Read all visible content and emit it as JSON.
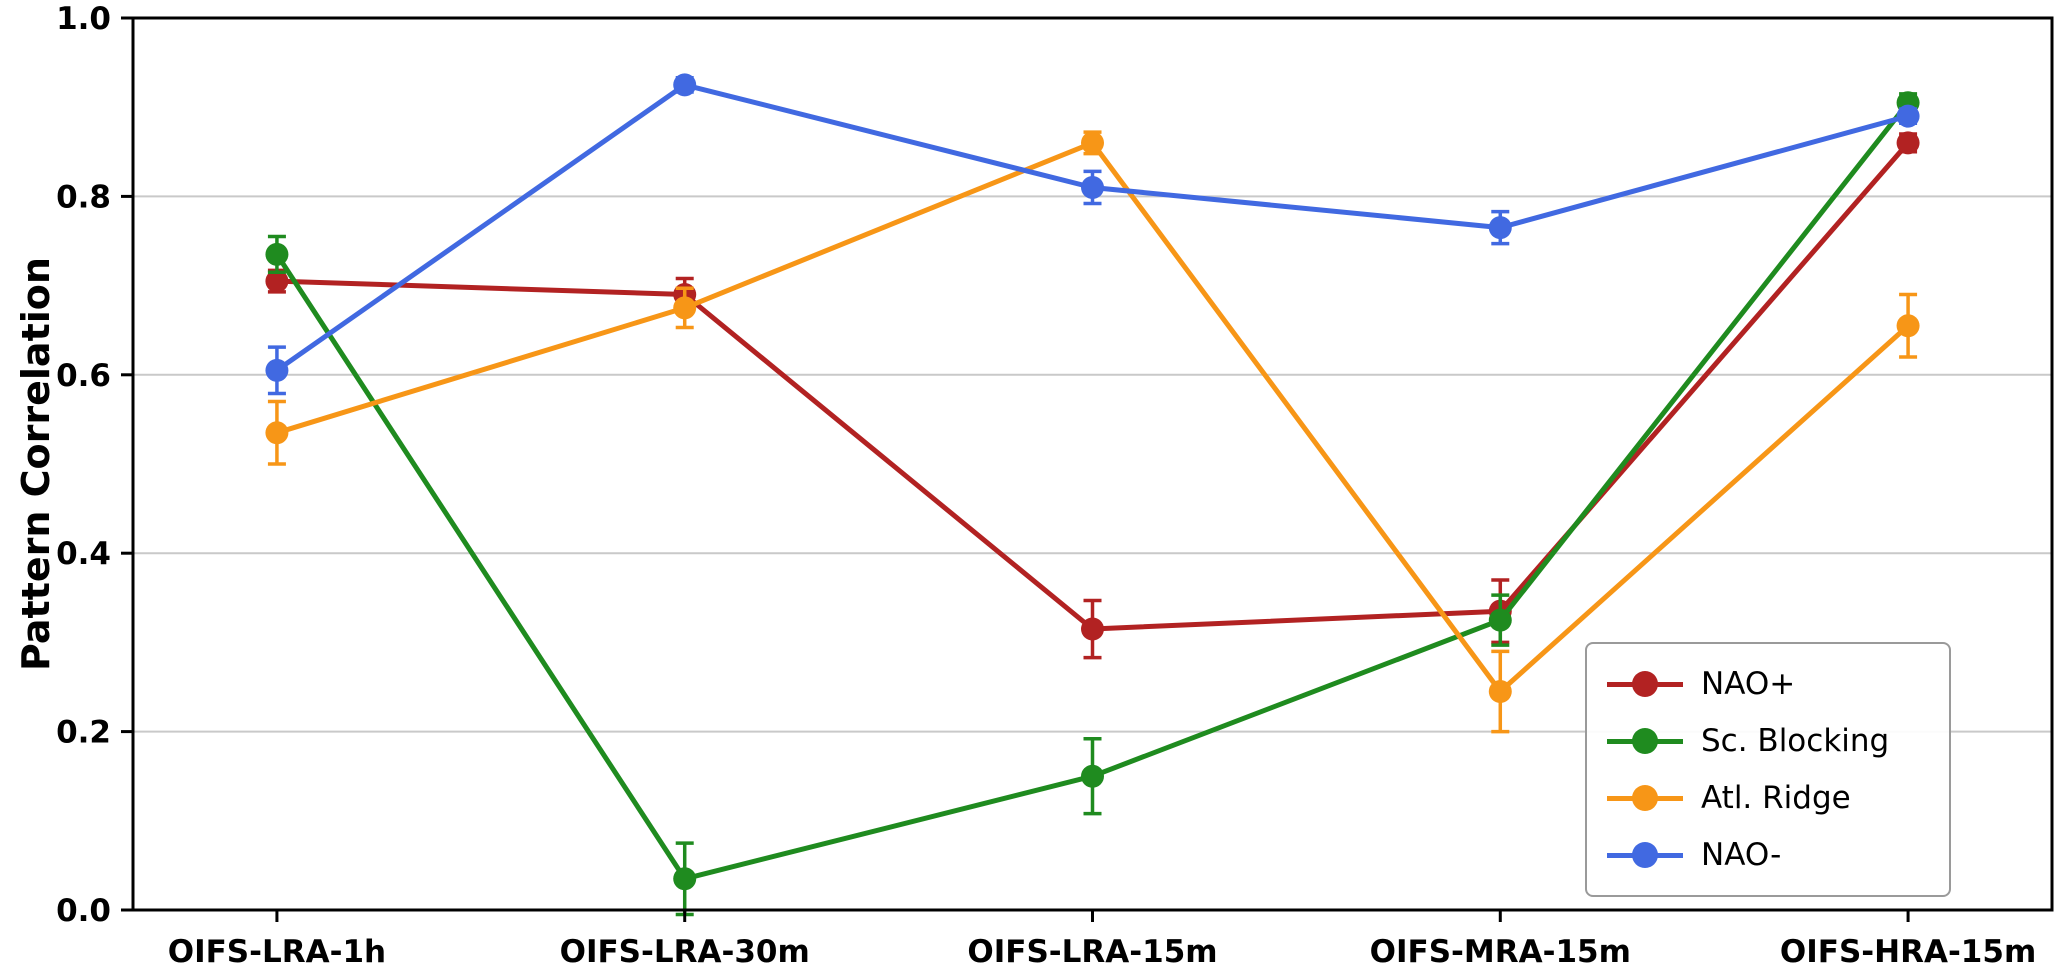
{
  "chart_data": {
    "type": "line",
    "title": "",
    "xlabel": "",
    "ylabel": "Pattern Correlation",
    "ylim": [
      0.0,
      1.0
    ],
    "yticks": [
      0.0,
      0.2,
      0.4,
      0.6,
      0.8,
      1.0
    ],
    "grid": "horizontal",
    "legend_position": "lower right",
    "categories": [
      "OIFS-LRA-1h",
      "OIFS-LRA-30m",
      "OIFS-LRA-15m",
      "OIFS-MRA-15m",
      "OIFS-HRA-15m"
    ],
    "series": [
      {
        "name": "NAO+",
        "color": "#B22222",
        "values": [
          0.705,
          0.69,
          0.315,
          0.335,
          0.86
        ],
        "errors": [
          0.012,
          0.018,
          0.032,
          0.035,
          0.01
        ]
      },
      {
        "name": "Sc. Blocking",
        "color": "#1F8B1F",
        "values": [
          0.735,
          0.035,
          0.15,
          0.325,
          0.905
        ],
        "errors": [
          0.02,
          0.04,
          0.042,
          0.028,
          0.01
        ]
      },
      {
        "name": "Atl. Ridge",
        "color": "#F79617",
        "values": [
          0.535,
          0.675,
          0.86,
          0.245,
          0.655
        ],
        "errors": [
          0.035,
          0.022,
          0.012,
          0.045,
          0.035
        ]
      },
      {
        "name": "NAO-",
        "color": "#4169E1",
        "values": [
          0.605,
          0.925,
          0.81,
          0.765,
          0.89
        ],
        "errors": [
          0.026,
          0.008,
          0.018,
          0.018,
          0.008
        ]
      }
    ]
  }
}
